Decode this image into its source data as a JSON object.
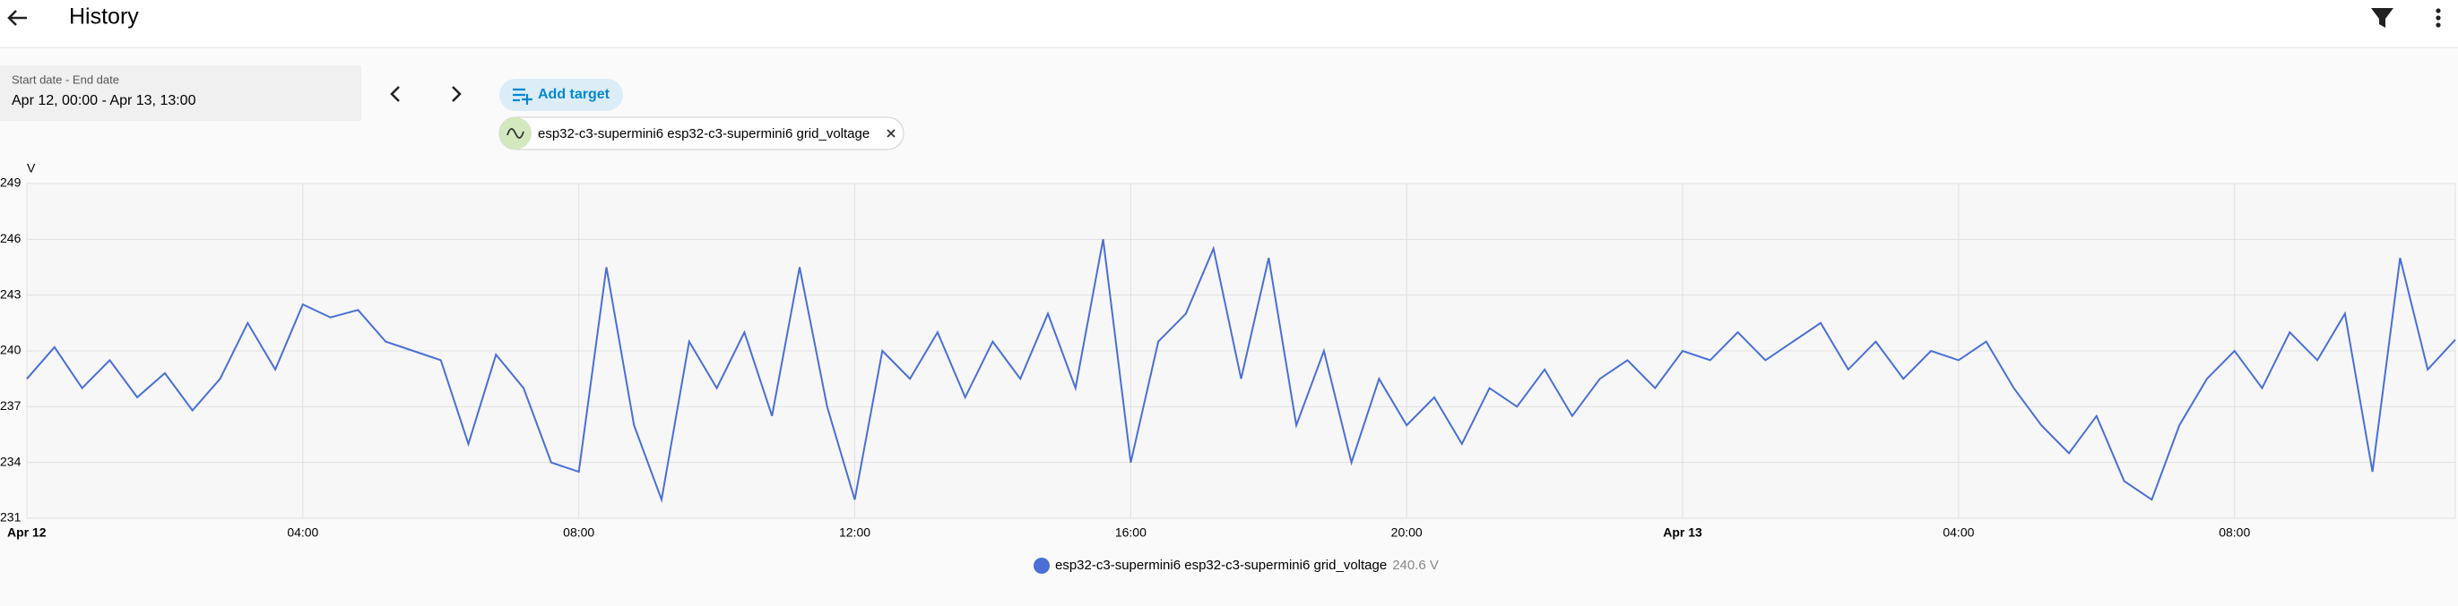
{
  "header": {
    "title": "History"
  },
  "controls": {
    "date_caption": "Start date - End date",
    "date_value": "Apr 12, 00:00 - Apr 13, 13:00",
    "add_target": "Add target",
    "target_chip": "esp32-c3-superminі6 esp32-c3-superminі6 grid_voltage"
  },
  "chart_data": {
    "type": "line",
    "y_axis_label": "V",
    "legend_value": "240.6 V",
    "xlim": [
      0,
      35.2
    ],
    "xticks": [
      {
        "value": 0,
        "label": "Apr 12"
      },
      {
        "value": 4,
        "label": "04:00"
      },
      {
        "value": 8,
        "label": "08:00"
      },
      {
        "value": 12,
        "label": "12:00"
      },
      {
        "value": 16,
        "label": "16:00"
      },
      {
        "value": 20,
        "label": "20:00"
      },
      {
        "value": 24,
        "label": "Apr 13"
      },
      {
        "value": 28,
        "label": "04:00"
      },
      {
        "value": 32,
        "label": "08:00"
      }
    ],
    "ylim": [
      231,
      249
    ],
    "yticks": [
      231,
      234,
      237,
      240,
      243,
      246,
      249
    ],
    "grid": true,
    "x": [
      0,
      0.4,
      0.8,
      1.2,
      1.6,
      2,
      2.4,
      2.8,
      3.2,
      3.6,
      4,
      4.4,
      4.8,
      5.2,
      5.6,
      6,
      6.4,
      6.8,
      7.2,
      7.6,
      8,
      8.4,
      8.8,
      9.2,
      9.6,
      10,
      10.4,
      10.8,
      11.2,
      11.6,
      12,
      12.4,
      12.8,
      13.2,
      13.6,
      14,
      14.4,
      14.8,
      15.2,
      15.6,
      16,
      16.4,
      16.8,
      17.2,
      17.6,
      18,
      18.4,
      18.8,
      19.2,
      19.6,
      20,
      20.4,
      20.8,
      21.2,
      21.6,
      22,
      22.4,
      22.8,
      23.2,
      23.6,
      24,
      24.4,
      24.8,
      25.2,
      25.6,
      26,
      26.4,
      26.8,
      27.2,
      27.6,
      28,
      28.4,
      28.8,
      29.2,
      29.6,
      30,
      30.4,
      30.8,
      31.2,
      31.6,
      32,
      32.4,
      32.8,
      33.2,
      33.6,
      34,
      34.4,
      34.8,
      35.2
    ],
    "series": [
      {
        "name": "esp32-c3-superminі6 esp32-c3-superminі6 grid_voltage",
        "color": "#4a6fd6",
        "values": [
          238.5,
          240.2,
          238,
          239.5,
          237.5,
          238.8,
          236.8,
          238.5,
          241.5,
          239,
          242.5,
          241.8,
          242.2,
          240.5,
          240,
          239.5,
          235,
          239.8,
          238,
          234,
          233.5,
          244.5,
          236,
          232,
          240.5,
          238,
          241,
          236.5,
          244.5,
          237,
          232,
          240,
          238.5,
          241,
          237.5,
          240.5,
          238.5,
          242,
          238,
          246,
          234,
          240.5,
          242,
          245.5,
          238.5,
          245,
          236,
          240,
          234,
          238.5,
          236,
          237.5,
          235,
          238,
          237,
          239,
          236.5,
          238.5,
          239.5,
          238,
          240,
          239.5,
          241,
          239.5,
          240.5,
          241.5,
          239,
          240.5,
          238.5,
          240,
          239.5,
          240.5,
          238,
          236,
          234.5,
          236.5,
          233,
          232,
          236,
          238.5,
          240,
          238,
          241,
          239.5,
          242,
          233.5,
          245,
          239,
          240.6
        ]
      }
    ]
  }
}
